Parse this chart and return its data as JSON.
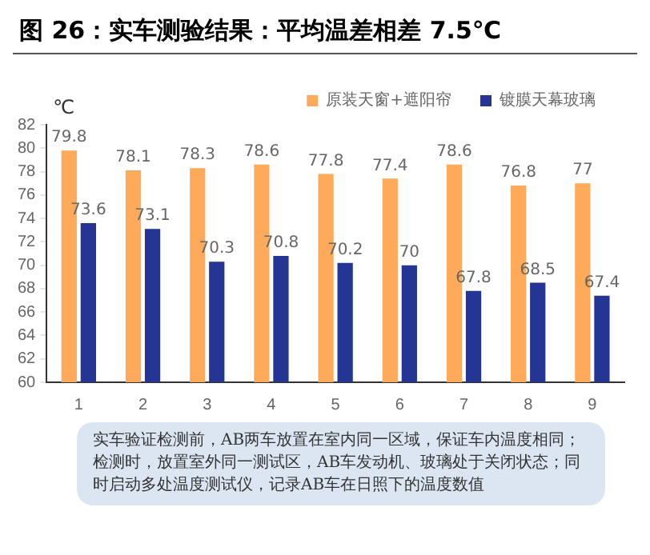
{
  "chart_data": {
    "type": "bar",
    "title": "图 26：实车测验结果：平均温差相差 7.5℃",
    "ylabel": "℃",
    "categories": [
      "1",
      "2",
      "3",
      "4",
      "5",
      "6",
      "7",
      "8",
      "9"
    ],
    "series": [
      {
        "name": "原装天窗+遮阳帘",
        "color": "#ffaa5a",
        "values": [
          79.8,
          78.1,
          78.3,
          78.6,
          77.8,
          77.4,
          78.6,
          76.8,
          77
        ]
      },
      {
        "name": "镀膜天幕玻璃",
        "color": "#243594",
        "values": [
          73.6,
          73.1,
          70.3,
          70.8,
          70.2,
          70,
          67.8,
          68.5,
          67.4
        ]
      }
    ],
    "ylim": [
      60,
      82
    ],
    "yticks": [
      60,
      62,
      64,
      66,
      68,
      70,
      72,
      74,
      76,
      78,
      80,
      82
    ],
    "grid": false,
    "legend": "top",
    "data_labels": true,
    "annotations": [
      "实车验证检测前，AB两车放置在室内同一区域，保证车内温度相同；检测时，放置室外同一测试区，AB车发动机、玻璃处于关闭状态；同时启动多处温度测试仪，记录AB车在日照下的温度数值"
    ]
  }
}
